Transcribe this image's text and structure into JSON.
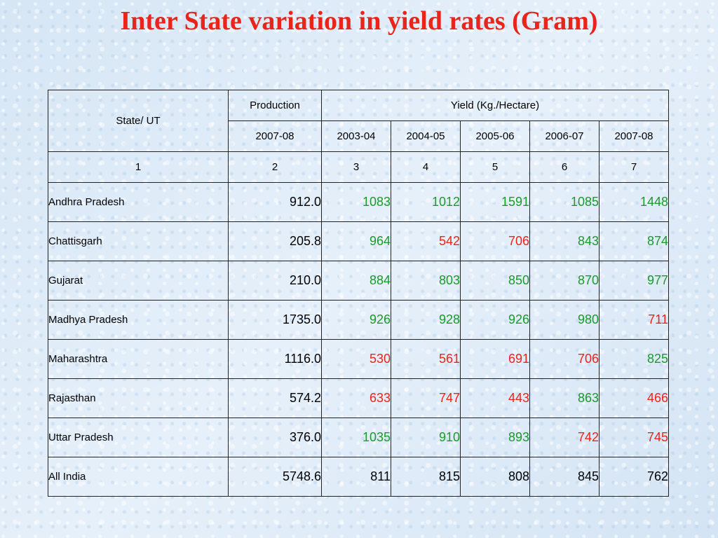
{
  "title": "Inter State variation in yield rates (Gram)",
  "colors": {
    "title": "#e8241b",
    "green": "#1a9a2a",
    "red": "#e8241b",
    "black": "#000000"
  },
  "table": {
    "header": {
      "state": "State/ UT",
      "production": "Production",
      "yield": "Yield (Kg./Hectare)",
      "years": [
        "2007-08",
        "2003-04",
        "2004-05",
        "2005-06",
        "2006-07",
        "2007-08"
      ],
      "numbers": [
        "1",
        "2",
        "3",
        "4",
        "5",
        "6",
        "7"
      ]
    },
    "rows": [
      {
        "state": "Andhra Pradesh",
        "production": "912.0",
        "yields": [
          {
            "v": "1083",
            "c": "green"
          },
          {
            "v": "1012",
            "c": "green"
          },
          {
            "v": "1591",
            "c": "green"
          },
          {
            "v": "1085",
            "c": "green"
          },
          {
            "v": "1448",
            "c": "green"
          }
        ]
      },
      {
        "state": "Chattisgarh",
        "production": "205.8",
        "yields": [
          {
            "v": "964",
            "c": "green"
          },
          {
            "v": "542",
            "c": "red"
          },
          {
            "v": "706",
            "c": "red"
          },
          {
            "v": "843",
            "c": "green"
          },
          {
            "v": "874",
            "c": "green"
          }
        ]
      },
      {
        "state": "Gujarat",
        "production": "210.0",
        "yields": [
          {
            "v": "884",
            "c": "green"
          },
          {
            "v": "803",
            "c": "green"
          },
          {
            "v": "850",
            "c": "green"
          },
          {
            "v": "870",
            "c": "green"
          },
          {
            "v": "977",
            "c": "green"
          }
        ]
      },
      {
        "state": "Madhya Pradesh",
        "production": "1735.0",
        "yields": [
          {
            "v": "926",
            "c": "green"
          },
          {
            "v": "928",
            "c": "green"
          },
          {
            "v": "926",
            "c": "green"
          },
          {
            "v": "980",
            "c": "green"
          },
          {
            "v": "711",
            "c": "red"
          }
        ]
      },
      {
        "state": "Maharashtra",
        "production": "1116.0",
        "yields": [
          {
            "v": "530",
            "c": "red"
          },
          {
            "v": "561",
            "c": "red"
          },
          {
            "v": "691",
            "c": "red"
          },
          {
            "v": "706",
            "c": "red"
          },
          {
            "v": "825",
            "c": "green"
          }
        ]
      },
      {
        "state": "Rajasthan",
        "production": "574.2",
        "yields": [
          {
            "v": "633",
            "c": "red"
          },
          {
            "v": "747",
            "c": "red"
          },
          {
            "v": "443",
            "c": "red"
          },
          {
            "v": "863",
            "c": "green"
          },
          {
            "v": "466",
            "c": "red"
          }
        ]
      },
      {
        "state": "Uttar Pradesh",
        "production": "376.0",
        "yields": [
          {
            "v": "1035",
            "c": "green"
          },
          {
            "v": "910",
            "c": "green"
          },
          {
            "v": "893",
            "c": "green"
          },
          {
            "v": "742",
            "c": "red"
          },
          {
            "v": "745",
            "c": "red"
          }
        ]
      },
      {
        "state": "All India",
        "production": "5748.6",
        "yields": [
          {
            "v": "811",
            "c": "black"
          },
          {
            "v": "815",
            "c": "black"
          },
          {
            "v": "808",
            "c": "black"
          },
          {
            "v": "845",
            "c": "black"
          },
          {
            "v": "762",
            "c": "black"
          }
        ]
      }
    ]
  }
}
